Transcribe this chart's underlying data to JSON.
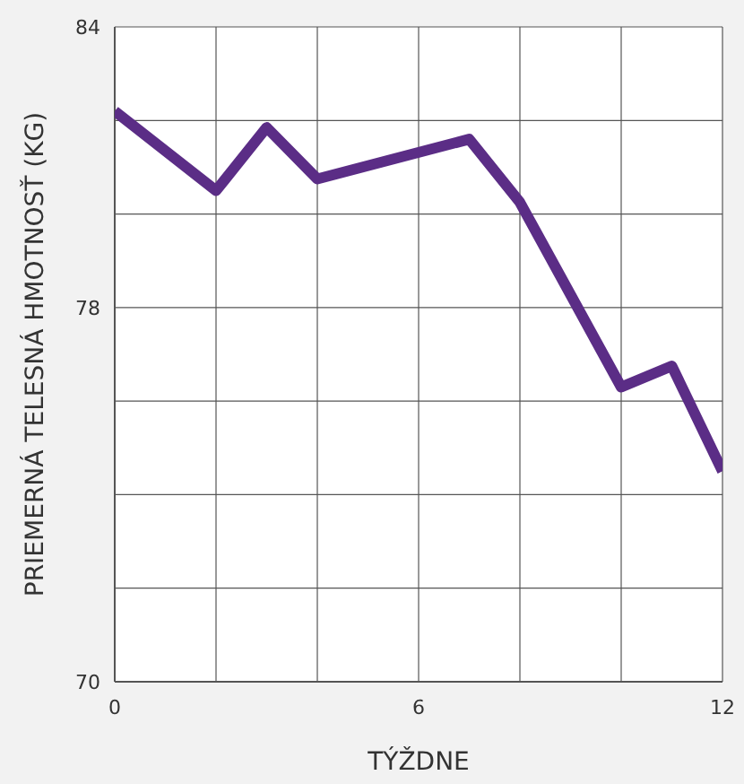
{
  "chart_data": {
    "type": "line",
    "xlabel": "TÝŽDNE",
    "ylabel": "PRIEMERNÁ TELESNÁ HMOTNOSŤ (KG)",
    "x": [
      0,
      2,
      3,
      4,
      7,
      8,
      10,
      11,
      12
    ],
    "series": [
      {
        "color": "#5b2d86",
        "values": [
          82.2,
          80.5,
          81.85,
          80.75,
          81.6,
          80.25,
          76.3,
          76.75,
          74.5
        ]
      }
    ],
    "xlim": [
      0,
      12
    ],
    "xticks": [
      0,
      {
        "value": 2,
        "label": null
      },
      {
        "value": 4,
        "label": null
      },
      6,
      {
        "value": 8,
        "label": null
      },
      {
        "value": 10,
        "label": null
      },
      12
    ],
    "ylim": [
      70,
      84
    ],
    "yticks": [
      70,
      {
        "value": 72,
        "label": null
      },
      {
        "value": 74,
        "label": null
      },
      {
        "value": 76,
        "label": null
      },
      78,
      {
        "value": 80,
        "label": null
      },
      {
        "value": 82,
        "label": null
      },
      84
    ],
    "grid": true,
    "line_style": "solid",
    "marker": "none"
  }
}
